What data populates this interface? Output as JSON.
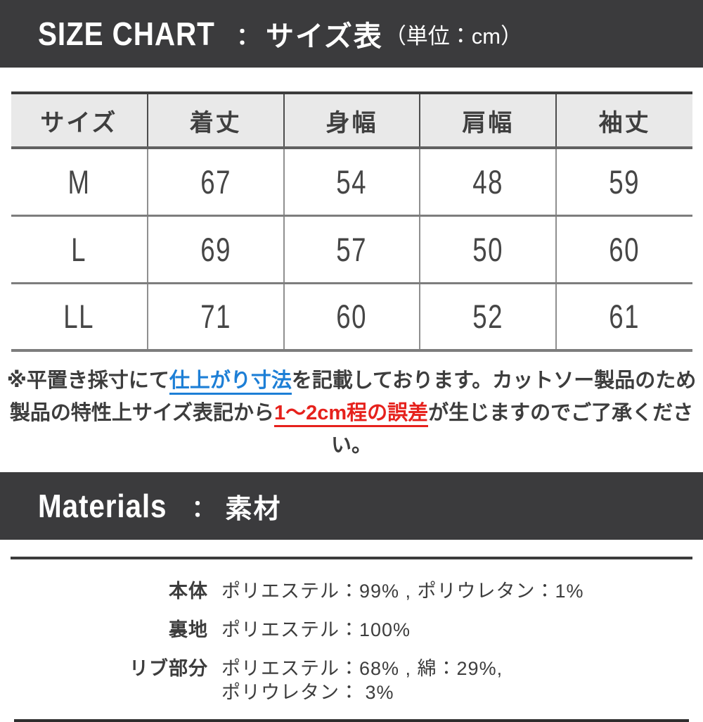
{
  "colors": {
    "banner-bg": "#3b3b3d",
    "banner-text": "#ffffff",
    "table-header-bg": "#e9e9e9",
    "text-dark": "#3d3d3d",
    "number-gray": "#464646",
    "line-dark": "#3c3c3c",
    "line-gray": "#7d7d7d",
    "vline-header": "#4d4d4d",
    "vline-body": "#8f8f8f",
    "highlight-blue": "#1d7fd6",
    "highlight-red": "#e6211c"
  },
  "size_chart_banner": {
    "title_en": "SIZE CHART",
    "separator": "：",
    "title_jp": "サイズ表",
    "unit": "（単位：cm）"
  },
  "table": {
    "headers": [
      "サイズ",
      "着丈",
      "身幅",
      "肩幅",
      "袖丈"
    ],
    "rows": [
      {
        "size": "M",
        "values": [
          "67",
          "54",
          "48",
          "59"
        ]
      },
      {
        "size": "L",
        "values": [
          "69",
          "57",
          "50",
          "60"
        ]
      },
      {
        "size": "LL",
        "values": [
          "71",
          "60",
          "52",
          "61"
        ]
      }
    ]
  },
  "note": {
    "line1": {
      "pre": "※平置き採寸にて",
      "highlight": "仕上がり寸法",
      "post": "を記載しております。カットソー製品のため"
    },
    "line2": {
      "pre": "製品の特性上サイズ表記から",
      "highlight": "1〜2cm程の誤差",
      "post": "が生じますのでご了承ください。"
    }
  },
  "materials_banner": {
    "title_en": "Materials",
    "separator": "：",
    "title_jp": "素材"
  },
  "materials": {
    "rows": [
      {
        "label": "本体",
        "value": "ポリエステル：99% , ポリウレタン：1%"
      },
      {
        "label": "裏地",
        "value": "ポリエステル：100%"
      },
      {
        "label": "リブ部分",
        "value": "ポリエステル：68% , 綿：29%,",
        "value2": "ポリウレタン： 3%"
      }
    ]
  }
}
